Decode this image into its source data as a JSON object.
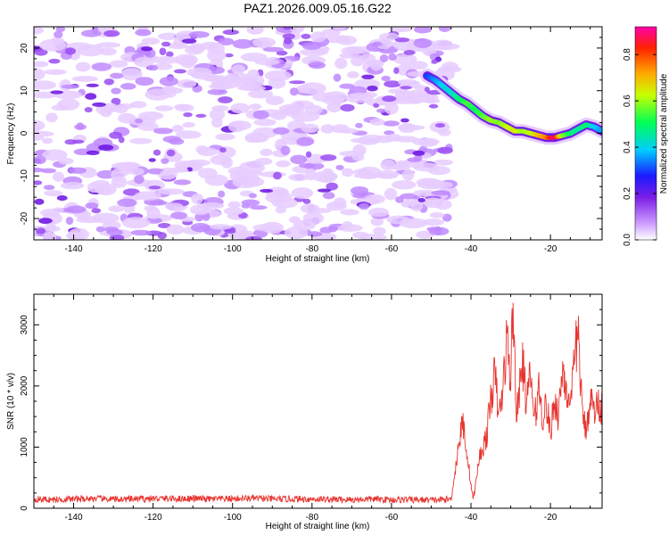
{
  "title": "PAZ1.2026.009.05.16.G22",
  "chart_data": [
    {
      "type": "heatmap",
      "title": "PAZ1.2026.009.05.16.G22",
      "xlabel": "Height of straight line (km)",
      "ylabel": "Frequency (Hz)",
      "xlim": [
        -150,
        -7
      ],
      "ylim": [
        -25,
        25
      ],
      "xticks": [
        -140,
        -120,
        -100,
        -80,
        -60,
        -40,
        -20
      ],
      "yticks": [
        20,
        10,
        0,
        -10,
        -20
      ],
      "noise_region_x": [
        -150,
        -45
      ],
      "ridge": {
        "x": [
          -51,
          -49,
          -47,
          -45,
          -43,
          -41,
          -39,
          -37,
          -35,
          -33,
          -31,
          -29,
          -27,
          -25,
          -23,
          -21,
          -19,
          -17,
          -15,
          -13,
          -11,
          -9,
          -7
        ],
        "y": [
          13.5,
          12.5,
          11,
          9.5,
          8,
          7,
          5.5,
          4,
          3,
          2.5,
          1.5,
          0.5,
          0.5,
          0,
          -0.5,
          -1,
          -1,
          -0.5,
          0,
          1,
          2,
          1.5,
          0.5
        ],
        "amplitude": [
          0.3,
          0.35,
          0.4,
          0.42,
          0.48,
          0.55,
          0.5,
          0.55,
          0.6,
          0.58,
          0.62,
          0.65,
          0.6,
          0.62,
          0.7,
          0.75,
          0.9,
          0.6,
          0.5,
          0.45,
          0.5,
          0.4,
          0.35
        ]
      },
      "colorbar": {
        "label": "Normalized spectral amplitude",
        "range": [
          0,
          0.92
        ],
        "ticks": [
          "0.0",
          "0.2",
          "0.4",
          "0.6",
          "0.8"
        ],
        "tick_values": [
          0,
          0.2,
          0.4,
          0.6,
          0.8
        ]
      }
    },
    {
      "type": "line",
      "xlabel": "Height of straight line (km)",
      "ylabel": "SNR (10 * v/v)",
      "xlim": [
        -150,
        -7
      ],
      "ylim": [
        0,
        3500
      ],
      "xticks": [
        -140,
        -120,
        -100,
        -80,
        -60,
        -40,
        -20
      ],
      "yticks": [
        0,
        1000,
        2000,
        3000
      ],
      "color": "#e8342f",
      "series": [
        {
          "name": "SNR",
          "x": [
            -150,
            -145,
            -140,
            -135,
            -130,
            -125,
            -120,
            -115,
            -110,
            -105,
            -100,
            -95,
            -90,
            -85,
            -80,
            -75,
            -70,
            -65,
            -60,
            -55,
            -50,
            -47,
            -45,
            -44,
            -43,
            -42,
            -41,
            -40,
            -39.5,
            -39,
            -38,
            -37,
            -36,
            -35,
            -34,
            -33,
            -32,
            -31,
            -30,
            -29.5,
            -29,
            -28.5,
            -28,
            -27,
            -26,
            -25,
            -24,
            -23,
            -22,
            -21,
            -20,
            -19,
            -18,
            -17,
            -16,
            -15,
            -14,
            -13,
            -12,
            -11,
            -10,
            -9,
            -8,
            -7
          ],
          "y": [
            150,
            140,
            150,
            160,
            145,
            150,
            160,
            155,
            160,
            150,
            155,
            165,
            150,
            150,
            150,
            145,
            140,
            150,
            140,
            140,
            135,
            140,
            150,
            600,
            1100,
            1400,
            900,
            400,
            150,
            300,
            800,
            1000,
            1200,
            1800,
            2200,
            1500,
            1900,
            2800,
            2100,
            3300,
            2500,
            1500,
            1800,
            2400,
            1700,
            2200,
            1400,
            2000,
            1500,
            1700,
            1200,
            1800,
            1500,
            2300,
            2000,
            1500,
            2400,
            2900,
            1500,
            1300,
            1800,
            1600,
            1700,
            1650
          ]
        }
      ]
    }
  ]
}
